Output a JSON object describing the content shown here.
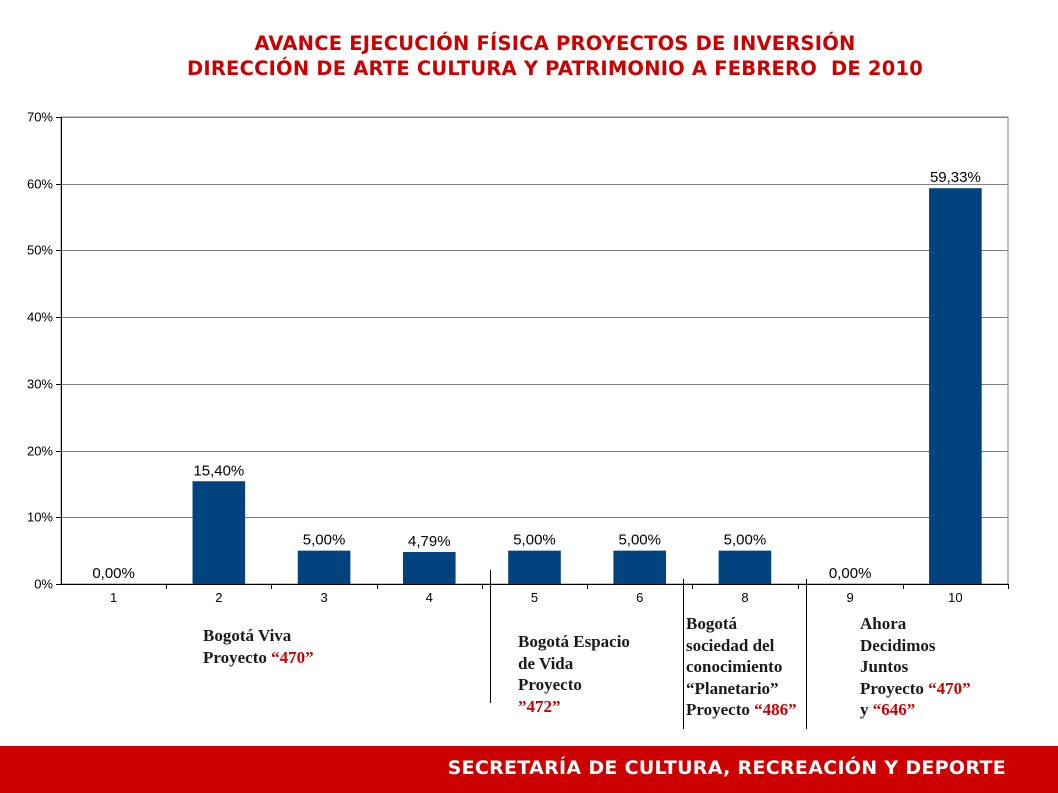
{
  "title_line1": "AVANCE EJECUCIÓN FÍSICA PROYECTOS DE INVERSIÓN",
  "title_line2": "DIRECCIÓN DE ARTE CULTURA Y PATRIMONIO A FEBRERO  DE 2010",
  "chart_data": {
    "type": "bar",
    "categories": [
      "1",
      "2",
      "3",
      "4",
      "5",
      "6",
      "8",
      "9",
      "10"
    ],
    "values": [
      0.0,
      15.4,
      5.0,
      4.79,
      5.0,
      5.0,
      5.0,
      0.0,
      59.33
    ],
    "data_labels": [
      "0,00%",
      "15,40%",
      "5,00%",
      "4,79%",
      "5,00%",
      "5,00%",
      "5,00%",
      "0,00%",
      "59,33%"
    ],
    "ylim": [
      0,
      70
    ],
    "yticks": [
      "0%",
      "10%",
      "20%",
      "30%",
      "40%",
      "50%",
      "60%",
      "70%"
    ],
    "grid": true,
    "bar_color": "#00437f",
    "xlabel": "",
    "ylabel": ""
  },
  "project_labels": {
    "group1": {
      "line1": "Bogotá Viva",
      "line2_text": "Proyecto ",
      "line2_red": "“470”"
    },
    "group2": {
      "line1": "Bogotá Espacio",
      "line2": "de Vida",
      "line3": "Proyecto",
      "line4_red": "”472”"
    },
    "group3": {
      "line1": "Bogotá",
      "line2": "sociedad del",
      "line3": "conocimiento",
      "line4": "“Planetario”",
      "line5_text": "Proyecto ",
      "line5_red": "“486”"
    },
    "group4": {
      "line1": "Ahora",
      "line2": "Decidimos",
      "line3": "Juntos",
      "line4_text": "Proyecto ",
      "line4_red": "“470”",
      "line5_text": "y ",
      "line5_red": "“646”"
    }
  },
  "footer": "SECRETARÍA DE CULTURA, RECREACIÓN Y DEPORTE",
  "colors": {
    "accent": "#cc0000",
    "bar": "#00437f"
  }
}
